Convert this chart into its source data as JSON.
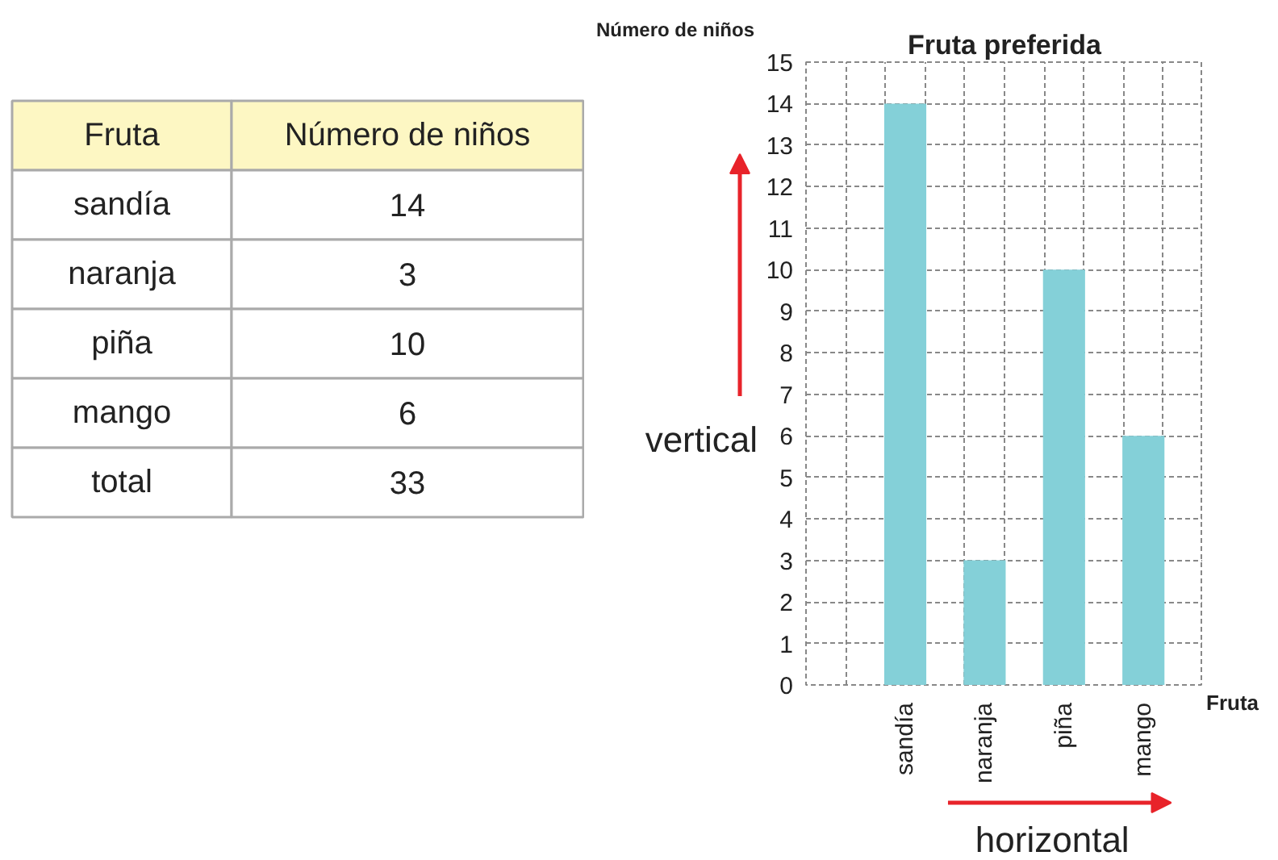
{
  "chart_data": [
    {
      "type": "other",
      "categories": [
        "sandía",
        "naranja",
        "piña",
        "mango"
      ],
      "values": [
        14,
        3,
        10,
        6
      ],
      "data_labels": true,
      "annotations": [
        "Fruta",
        "Número de niños",
        "total",
        "33"
      ]
    },
    {
      "type": "bar",
      "title": "Fruta preferida",
      "xlabel": "Fruta",
      "ylabel": "Número de niños",
      "categories": [
        "sandía",
        "naranja",
        "piña",
        "mango"
      ],
      "values": [
        14,
        3,
        10,
        6
      ],
      "color": "#84d0d8",
      "ylim": [
        0,
        15
      ],
      "yticks": [
        0,
        1,
        2,
        3,
        4,
        5,
        6,
        7,
        8,
        9,
        10,
        11,
        12,
        13,
        14,
        15
      ],
      "grid": true,
      "annotations": [
        "vertical",
        "horizontal"
      ]
    }
  ]
}
